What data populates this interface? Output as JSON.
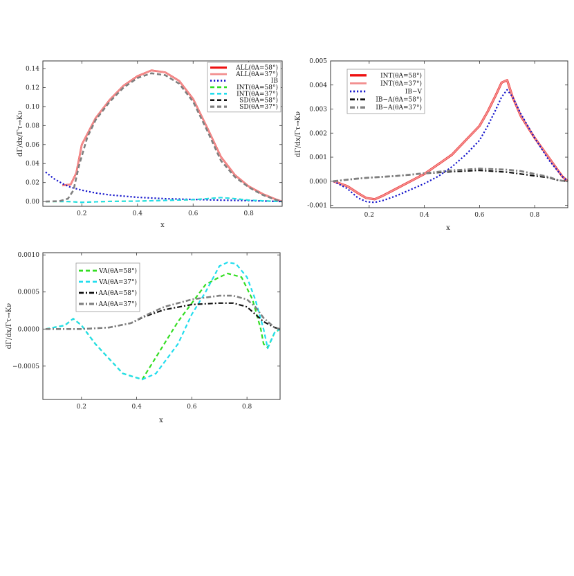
{
  "chart_data": [
    {
      "type": "line",
      "xlabel": "x",
      "ylabel": "dΓ/dx/Γτ→Kν",
      "xlim": [
        0.06,
        0.92
      ],
      "ylim": [
        -0.005,
        0.148
      ],
      "xticks": [
        0.2,
        0.4,
        0.6,
        0.8
      ],
      "xtick_labels": [
        "0.2",
        "0.4",
        "0.6",
        "0.8"
      ],
      "yticks": [
        0.0,
        0.02,
        0.04,
        0.06,
        0.08,
        0.1,
        0.12,
        0.14
      ],
      "ytick_labels": [
        "0.00",
        "0.02",
        "0.04",
        "0.06",
        "0.08",
        "0.10",
        "0.12",
        "0.14"
      ],
      "legend_position": "top-right",
      "series": [
        {
          "name": "ALL(θA=58°)",
          "color": "#ee1111",
          "dash": "solid",
          "width": 2.6,
          "x": [
            0.13,
            0.16,
            0.18,
            0.2,
            0.25,
            0.3,
            0.35,
            0.4,
            0.45,
            0.5,
            0.55,
            0.6,
            0.65,
            0.7,
            0.75,
            0.8,
            0.85,
            0.9,
            0.92
          ],
          "y": [
            0.017,
            0.018,
            0.03,
            0.06,
            0.088,
            0.107,
            0.122,
            0.132,
            0.138,
            0.136,
            0.127,
            0.108,
            0.078,
            0.047,
            0.028,
            0.016,
            0.008,
            0.002,
            0.0
          ]
        },
        {
          "name": "ALL(θA=37°)",
          "color": "#f28d8d",
          "dash": "solid",
          "width": 2.2,
          "x": [
            0.13,
            0.16,
            0.18,
            0.2,
            0.25,
            0.3,
            0.35,
            0.4,
            0.45,
            0.5,
            0.55,
            0.6,
            0.65,
            0.7,
            0.75,
            0.8,
            0.85,
            0.9,
            0.92
          ],
          "y": [
            0.017,
            0.018,
            0.03,
            0.06,
            0.088,
            0.107,
            0.122,
            0.132,
            0.138,
            0.136,
            0.127,
            0.108,
            0.078,
            0.047,
            0.028,
            0.016,
            0.008,
            0.002,
            0.0
          ]
        },
        {
          "name": "IB",
          "color": "#1515cc",
          "dash": "dot",
          "width": 2.2,
          "x": [
            0.07,
            0.1,
            0.13,
            0.16,
            0.2,
            0.25,
            0.3,
            0.4,
            0.5,
            0.6,
            0.7,
            0.8,
            0.9,
            0.92
          ],
          "y": [
            0.031,
            0.024,
            0.019,
            0.015,
            0.012,
            0.009,
            0.007,
            0.0045,
            0.003,
            0.0022,
            0.0015,
            0.001,
            0.0002,
            0.0
          ]
        },
        {
          "name": "INT(θA=58°)",
          "color": "#33dd22",
          "dash": "dash",
          "width": 2.0,
          "x": [
            0.07,
            0.15,
            0.2,
            0.3,
            0.4,
            0.5,
            0.6,
            0.65,
            0.7,
            0.75,
            0.8,
            0.85,
            0.9,
            0.92
          ],
          "y": [
            0.0,
            0.0,
            -0.0008,
            0.0002,
            0.0005,
            0.0012,
            0.002,
            0.003,
            0.0042,
            0.003,
            0.0015,
            0.0008,
            0.0002,
            0.0
          ]
        },
        {
          "name": "INT(θA=37°)",
          "color": "#22ddee",
          "dash": "dash",
          "width": 2.0,
          "x": [
            0.07,
            0.15,
            0.2,
            0.3,
            0.4,
            0.5,
            0.6,
            0.65,
            0.7,
            0.75,
            0.8,
            0.85,
            0.9,
            0.92
          ],
          "y": [
            0.0,
            0.0,
            -0.0008,
            0.0002,
            0.0005,
            0.0012,
            0.002,
            0.003,
            0.0042,
            0.003,
            0.0015,
            0.0008,
            0.0002,
            0.0
          ]
        },
        {
          "name": "SD(θA=58°)",
          "color": "#111111",
          "dash": "dash",
          "width": 2.0,
          "x": [
            0.07,
            0.12,
            0.15,
            0.17,
            0.19,
            0.22,
            0.25,
            0.3,
            0.35,
            0.4,
            0.45,
            0.5,
            0.55,
            0.6,
            0.65,
            0.7,
            0.75,
            0.8,
            0.85,
            0.9,
            0.92
          ],
          "y": [
            0.0,
            0.0005,
            0.003,
            0.012,
            0.038,
            0.068,
            0.086,
            0.105,
            0.12,
            0.13,
            0.135,
            0.133,
            0.124,
            0.105,
            0.075,
            0.043,
            0.026,
            0.015,
            0.007,
            0.0015,
            0.0
          ]
        },
        {
          "name": "SD(θA=37°)",
          "color": "#808080",
          "dash": "dash",
          "width": 2.6,
          "x": [
            0.07,
            0.12,
            0.15,
            0.17,
            0.19,
            0.22,
            0.25,
            0.3,
            0.35,
            0.4,
            0.45,
            0.5,
            0.55,
            0.6,
            0.65,
            0.7,
            0.75,
            0.8,
            0.85,
            0.9,
            0.92
          ],
          "y": [
            0.0,
            0.0005,
            0.003,
            0.012,
            0.038,
            0.068,
            0.086,
            0.105,
            0.12,
            0.13,
            0.135,
            0.133,
            0.124,
            0.105,
            0.075,
            0.043,
            0.026,
            0.015,
            0.007,
            0.0015,
            0.0
          ]
        }
      ]
    },
    {
      "type": "line",
      "xlabel": "x",
      "ylabel": "dΓ/dx/Γτ→Kν",
      "xlim": [
        0.06,
        0.92
      ],
      "ylim": [
        -0.0011,
        0.005
      ],
      "xticks": [
        0.2,
        0.4,
        0.6,
        0.8
      ],
      "xtick_labels": [
        "0.2",
        "0.4",
        "0.6",
        "0.8"
      ],
      "yticks": [
        -0.001,
        0.0,
        0.001,
        0.002,
        0.003,
        0.004,
        0.005
      ],
      "ytick_labels": [
        "-0.001",
        "0.000",
        "0.001",
        "0.002",
        "0.003",
        "0.004",
        "0.005"
      ],
      "legend_position": "top-left",
      "series": [
        {
          "name": "INT(θA=58°)",
          "color": "#ee1111",
          "dash": "solid",
          "width": 3.2,
          "x": [
            0.07,
            0.12,
            0.16,
            0.19,
            0.22,
            0.25,
            0.3,
            0.4,
            0.5,
            0.55,
            0.6,
            0.63,
            0.66,
            0.68,
            0.7,
            0.72,
            0.75,
            0.8,
            0.85,
            0.9,
            0.92
          ],
          "y": [
            0.0,
            -0.0002,
            -0.0005,
            -0.0007,
            -0.00075,
            -0.0006,
            -0.0003,
            0.0003,
            0.0011,
            0.0017,
            0.0023,
            0.0029,
            0.0036,
            0.0041,
            0.0042,
            0.0035,
            0.0027,
            0.0018,
            0.001,
            0.0002,
            0.0
          ]
        },
        {
          "name": "INT(θA=37°)",
          "color": "#f28d8d",
          "dash": "solid",
          "width": 2.2,
          "x": [
            0.07,
            0.12,
            0.16,
            0.19,
            0.22,
            0.25,
            0.3,
            0.4,
            0.5,
            0.55,
            0.6,
            0.63,
            0.66,
            0.68,
            0.7,
            0.72,
            0.75,
            0.8,
            0.85,
            0.9,
            0.92
          ],
          "y": [
            0.0,
            -0.0002,
            -0.0005,
            -0.0007,
            -0.00075,
            -0.0006,
            -0.0003,
            0.0003,
            0.0011,
            0.0017,
            0.0023,
            0.0029,
            0.0036,
            0.0041,
            0.0042,
            0.0035,
            0.0027,
            0.0018,
            0.001,
            0.0002,
            0.0
          ]
        },
        {
          "name": "IB−V",
          "color": "#1515cc",
          "dash": "dot",
          "width": 2.2,
          "x": [
            0.07,
            0.12,
            0.16,
            0.19,
            0.22,
            0.25,
            0.3,
            0.4,
            0.45,
            0.5,
            0.55,
            0.6,
            0.63,
            0.66,
            0.68,
            0.7,
            0.72,
            0.75,
            0.8,
            0.85,
            0.9,
            0.92
          ],
          "y": [
            0.0,
            -0.0003,
            -0.0007,
            -0.00085,
            -0.00088,
            -0.0008,
            -0.0006,
            -0.0001,
            0.0002,
            0.0006,
            0.0011,
            0.0017,
            0.0023,
            0.003,
            0.0035,
            0.0038,
            0.0035,
            0.0028,
            0.0018,
            0.0009,
            0.0002,
            0.0
          ]
        },
        {
          "name": "IB−A(θA=58°)",
          "color": "#111111",
          "dash": "dashdot",
          "width": 2.2,
          "x": [
            0.07,
            0.15,
            0.2,
            0.3,
            0.4,
            0.5,
            0.6,
            0.7,
            0.75,
            0.8,
            0.85,
            0.88,
            0.9,
            0.92
          ],
          "y": [
            0.0,
            0.0001,
            0.00015,
            0.00022,
            0.00032,
            0.0004,
            0.00045,
            0.00038,
            0.0003,
            0.00022,
            0.00015,
            5e-05,
            2e-05,
            0.0
          ]
        },
        {
          "name": "IB−A(θA=37°)",
          "color": "#808080",
          "dash": "dashdot",
          "width": 2.8,
          "x": [
            0.07,
            0.15,
            0.2,
            0.3,
            0.4,
            0.5,
            0.6,
            0.7,
            0.75,
            0.8,
            0.85,
            0.88,
            0.9,
            0.92
          ],
          "y": [
            0.0,
            0.0001,
            0.00015,
            0.00022,
            0.00033,
            0.00045,
            0.00052,
            0.00048,
            0.00042,
            0.0003,
            0.00018,
            6e-05,
            2e-05,
            0.0
          ]
        }
      ]
    },
    {
      "type": "line",
      "xlabel": "x",
      "ylabel": "dΓ/dx/Γτ→Kν",
      "xlim": [
        0.06,
        0.92
      ],
      "ylim": [
        -0.00095,
        0.00103
      ],
      "xticks": [
        0.2,
        0.4,
        0.6,
        0.8
      ],
      "xtick_labels": [
        "0.2",
        "0.4",
        "0.6",
        "0.8"
      ],
      "yticks": [
        -0.0005,
        0.0,
        0.0005,
        0.001
      ],
      "ytick_labels": [
        "−0.0005",
        "0.0000",
        "0.0005",
        "0.0010"
      ],
      "legend_position": "top-left",
      "series": [
        {
          "name": "VA(θA=58°)",
          "color": "#33dd22",
          "dash": "dash",
          "width": 2.2,
          "x": [
            0.07,
            0.14,
            0.17,
            0.2,
            0.25,
            0.3,
            0.35,
            0.42,
            0.5,
            0.55,
            0.6,
            0.65,
            0.7,
            0.73,
            0.78,
            0.82,
            0.85,
            0.86,
            0.875,
            0.9,
            0.92
          ],
          "y": [
            0.0,
            5e-05,
            0.00014,
            5e-05,
            -0.0002,
            -0.0004,
            -0.0006,
            -0.00068,
            -0.0002,
            0.0001,
            0.00035,
            0.0006,
            0.0007,
            0.00075,
            0.0007,
            0.0004,
            0.0,
            -0.0002,
            -0.00025,
            -5e-05,
            0.0
          ]
        },
        {
          "name": "VA(θA=37°)",
          "color": "#22ddee",
          "dash": "dash",
          "width": 2.2,
          "x": [
            0.07,
            0.14,
            0.17,
            0.2,
            0.25,
            0.3,
            0.35,
            0.42,
            0.47,
            0.55,
            0.6,
            0.65,
            0.7,
            0.73,
            0.76,
            0.8,
            0.83,
            0.86,
            0.875,
            0.9,
            0.92
          ],
          "y": [
            0.0,
            5e-05,
            0.00014,
            5e-05,
            -0.0002,
            -0.0004,
            -0.0006,
            -0.00068,
            -0.0006,
            -0.0002,
            0.0002,
            0.0005,
            0.00085,
            0.0009,
            0.00088,
            0.0007,
            0.0004,
            0.0,
            -0.00026,
            -5e-05,
            0.0
          ]
        },
        {
          "name": "AA(θA=58°)",
          "color": "#111111",
          "dash": "dashdot",
          "width": 2.2,
          "x": [
            0.07,
            0.2,
            0.3,
            0.38,
            0.43,
            0.5,
            0.6,
            0.7,
            0.75,
            0.8,
            0.83,
            0.86,
            0.9,
            0.92
          ],
          "y": [
            0.0,
            0.0,
            2e-05,
            8e-05,
            0.00017,
            0.00026,
            0.00033,
            0.00035,
            0.00035,
            0.0003,
            0.0002,
            0.0001,
            2e-05,
            0.0
          ]
        },
        {
          "name": "AA(θA=37°)",
          "color": "#808080",
          "dash": "dashdot",
          "width": 2.6,
          "x": [
            0.07,
            0.2,
            0.3,
            0.38,
            0.43,
            0.5,
            0.6,
            0.7,
            0.75,
            0.8,
            0.83,
            0.86,
            0.9,
            0.92
          ],
          "y": [
            0.0,
            0.0,
            2e-05,
            8e-05,
            0.00018,
            0.0003,
            0.0004,
            0.00045,
            0.00045,
            0.0004,
            0.0003,
            0.00015,
            2e-05,
            0.0
          ]
        }
      ]
    }
  ]
}
